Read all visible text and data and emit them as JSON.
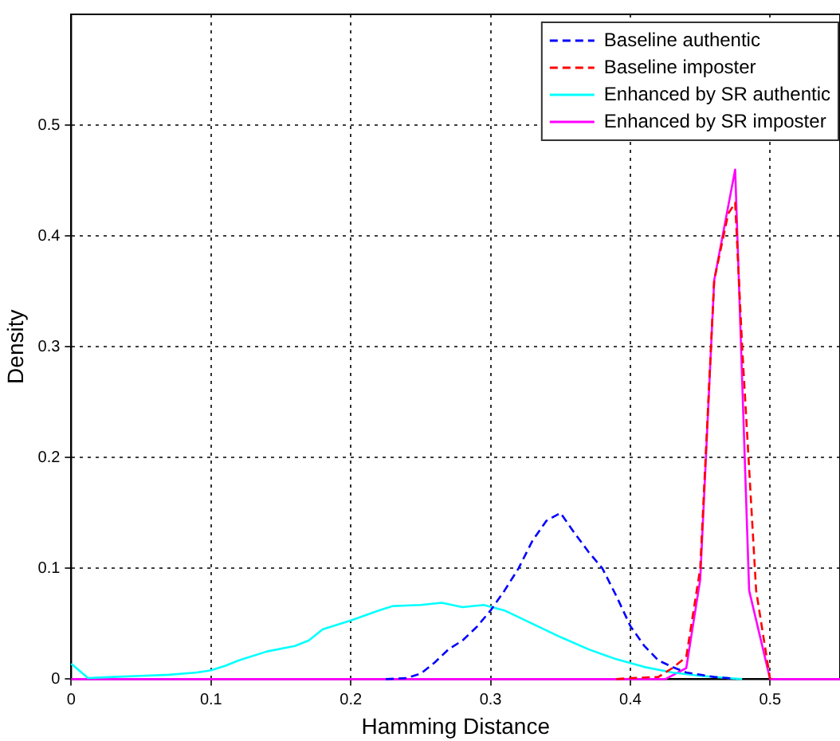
{
  "chart_data": {
    "type": "line",
    "xlabel": "Hamming Distance",
    "ylabel": "Density",
    "xlim": [
      0,
      0.55
    ],
    "ylim": [
      0,
      0.6
    ],
    "xticks": [
      0,
      0.1,
      0.2,
      0.3,
      0.4,
      0.5
    ],
    "yticks": [
      0,
      0.1,
      0.2,
      0.3,
      0.4,
      0.5
    ],
    "grid": true,
    "legend": "top right",
    "marker": "none",
    "series": [
      {
        "name": "Baseline authentic",
        "color": "#0000ff",
        "line_style": "dashed",
        "x": [
          0.225,
          0.24,
          0.25,
          0.26,
          0.27,
          0.28,
          0.29,
          0.3,
          0.31,
          0.32,
          0.33,
          0.34,
          0.35,
          0.36,
          0.37,
          0.38,
          0.39,
          0.4,
          0.41,
          0.42,
          0.43,
          0.44,
          0.45,
          0.46,
          0.47,
          0.475
        ],
        "values": [
          0,
          0.001,
          0.005,
          0.015,
          0.027,
          0.035,
          0.047,
          0.062,
          0.08,
          0.1,
          0.125,
          0.143,
          0.15,
          0.132,
          0.115,
          0.1,
          0.075,
          0.048,
          0.03,
          0.017,
          0.011,
          0.006,
          0.004,
          0.002,
          0.001,
          0
        ]
      },
      {
        "name": "Baseline imposter",
        "color": "#ff0000",
        "line_style": "dashed",
        "x": [
          0.39,
          0.4,
          0.42,
          0.43,
          0.44,
          0.45,
          0.46,
          0.47,
          0.475,
          0.48,
          0.49,
          0.5
        ],
        "values": [
          0,
          0.001,
          0.002,
          0.01,
          0.02,
          0.1,
          0.36,
          0.42,
          0.43,
          0.3,
          0.08,
          0
        ]
      },
      {
        "name": "Enhanced by SR authentic",
        "color": "#00ffff",
        "line_style": "solid",
        "x": [
          0,
          0.012,
          0.03,
          0.05,
          0.07,
          0.09,
          0.1,
          0.11,
          0.12,
          0.14,
          0.16,
          0.17,
          0.18,
          0.2,
          0.22,
          0.23,
          0.25,
          0.265,
          0.28,
          0.295,
          0.31,
          0.33,
          0.35,
          0.37,
          0.39,
          0.41,
          0.43,
          0.45,
          0.47,
          0.48
        ],
        "values": [
          0.014,
          0.001,
          0.002,
          0.003,
          0.004,
          0.006,
          0.008,
          0.012,
          0.017,
          0.025,
          0.03,
          0.035,
          0.045,
          0.053,
          0.062,
          0.066,
          0.067,
          0.069,
          0.065,
          0.067,
          0.062,
          0.05,
          0.038,
          0.027,
          0.018,
          0.011,
          0.006,
          0.003,
          0.001,
          0
        ]
      },
      {
        "name": "Enhanced by SR imposter",
        "color": "#ff00ff",
        "line_style": "solid",
        "x": [
          0,
          0.425,
          0.44,
          0.45,
          0.46,
          0.475,
          0.485,
          0.5,
          0.55
        ],
        "values": [
          0,
          0,
          0.01,
          0.09,
          0.36,
          0.46,
          0.08,
          0,
          0
        ]
      }
    ]
  }
}
